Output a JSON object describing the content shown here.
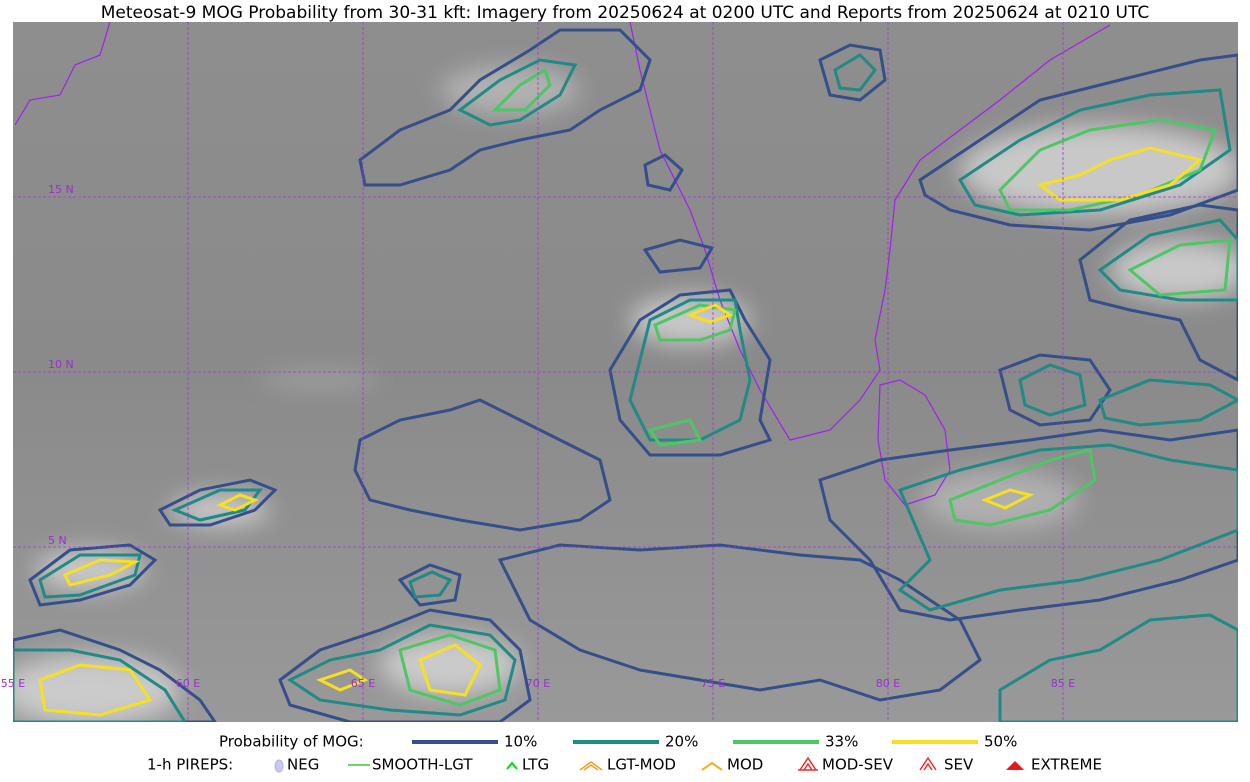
{
  "title": "Meteosat-9 MOG Probability from 30-31 kft: Imagery from 20250624 at 0200 UTC and Reports from 20250624 at 0210 UTC",
  "map": {
    "lat_labels": [
      "15 N",
      "10 N",
      "5 N"
    ],
    "lon_labels": [
      "55 E",
      "60 E",
      "65 E",
      "70 E",
      "75 E",
      "80 E",
      "85 E"
    ]
  },
  "legend": {
    "probability": {
      "label": "Probability of MOG:",
      "items": [
        {
          "label": "10%",
          "color": "#344f8a"
        },
        {
          "label": "20%",
          "color": "#1f8a86"
        },
        {
          "label": "33%",
          "color": "#4cc764"
        },
        {
          "label": "50%",
          "color": "#f6e020"
        }
      ]
    },
    "pireps": {
      "label": "1-h PIREPS:",
      "items": [
        "NEG",
        "SMOOTH-LGT",
        "LTG",
        "LGT-MOD",
        "MOD",
        "MOD-SEV",
        "SEV",
        "EXTREME"
      ]
    }
  }
}
